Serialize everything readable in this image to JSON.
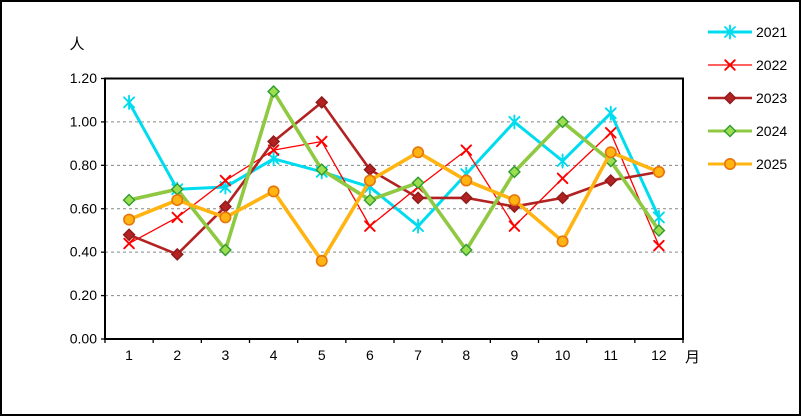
{
  "chart_data": {
    "type": "line",
    "title": "",
    "ylabel": "人",
    "xlabel": "月",
    "x": [
      "1",
      "2",
      "3",
      "4",
      "5",
      "6",
      "7",
      "8",
      "9",
      "10",
      "11",
      "12"
    ],
    "ylim": [
      0.0,
      1.2
    ],
    "ytick_step": 0.2,
    "ytick_labels": [
      "0.00",
      "0.20",
      "0.40",
      "0.60",
      "0.80",
      "1.00",
      "1.20"
    ],
    "grid": "dashed-horizontal",
    "legend_position": "top-right",
    "series": [
      {
        "name": "2021",
        "color": "#00DCEF",
        "marker": "asterisk",
        "marker_color": "#00DCEF",
        "line_width": 3,
        "values": [
          1.09,
          0.69,
          0.7,
          0.83,
          0.77,
          0.7,
          0.52,
          0.76,
          1.0,
          0.82,
          1.04,
          0.56
        ]
      },
      {
        "name": "2022",
        "color": "#FF0000",
        "marker": "x",
        "marker_color": "#FF0000",
        "line_width": 1.3,
        "values": [
          0.44,
          0.56,
          0.73,
          0.87,
          0.91,
          0.52,
          0.7,
          0.87,
          0.52,
          0.74,
          0.95,
          0.43
        ]
      },
      {
        "name": "2023",
        "color": "#B22222",
        "marker": "diamond",
        "marker_color": "#B22222",
        "marker_stroke": "#8E1A1A",
        "line_width": 2.6,
        "values": [
          0.48,
          0.39,
          0.61,
          0.91,
          1.09,
          0.78,
          0.65,
          0.65,
          0.61,
          0.65,
          0.73,
          0.77
        ]
      },
      {
        "name": "2024",
        "color": "#8FC841",
        "marker": "diamond",
        "marker_color": "#9CDE50",
        "marker_stroke": "#2E9B2E",
        "line_width": 3.6,
        "values": [
          0.64,
          0.69,
          0.41,
          1.14,
          0.78,
          0.64,
          0.72,
          0.41,
          0.77,
          1.0,
          0.82,
          0.5
        ]
      },
      {
        "name": "2025",
        "color": "#FFB412",
        "marker": "circle",
        "marker_color": "#FFB412",
        "marker_stroke": "#E8740C",
        "line_width": 3.6,
        "values": [
          0.55,
          0.64,
          0.56,
          0.68,
          0.36,
          0.73,
          0.86,
          0.73,
          0.64,
          0.45,
          0.86,
          0.77
        ]
      }
    ]
  }
}
